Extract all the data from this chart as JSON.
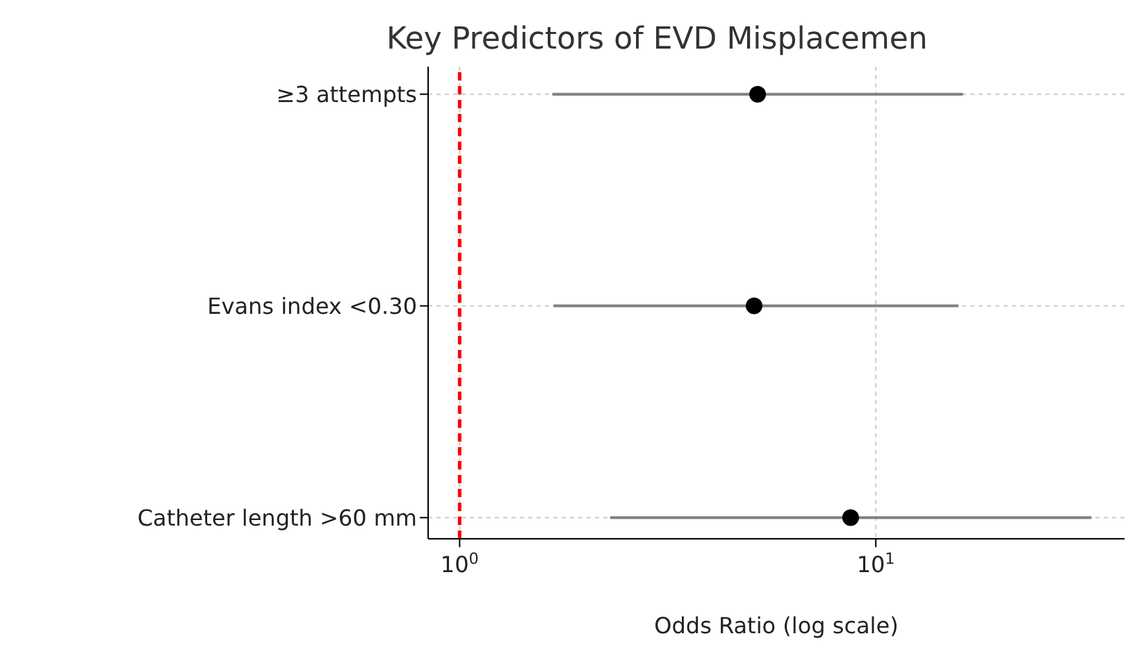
{
  "chart_data": {
    "type": "scatter",
    "title": "Key Predictors of EVD Misplacemen",
    "xlabel": "Odds Ratio (log scale)",
    "categories": [
      "≥3 attempts",
      "Evans index <0.30",
      "Catheter length >60 mm"
    ],
    "values": [
      5.2,
      5.1,
      8.7
    ],
    "errors": [
      [
        1.67,
        16.2
      ],
      [
        1.68,
        15.8
      ],
      [
        2.3,
        33
      ]
    ],
    "color": "#000000",
    "orientation": "horizontal",
    "log": "x",
    "xlim": [
      0.84,
      39.6
    ],
    "xticks": [
      {
        "value": 1,
        "label": "10$^{0}$"
      },
      {
        "value": 10,
        "label": "10$^{1}$"
      }
    ],
    "grid": true,
    "marker": "circle",
    "ref_lines": [
      {
        "axis": "x",
        "value": 1,
        "color": "#ff0000",
        "line_style": "dashed"
      }
    ]
  }
}
